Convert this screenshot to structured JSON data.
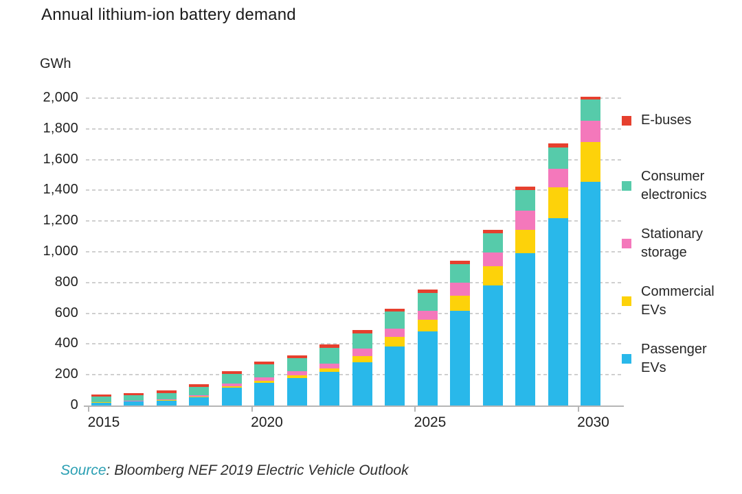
{
  "title": "Annual lithium-ion battery demand",
  "unit_label": "GWh",
  "source": {
    "prefix": "Source",
    "rest": ": Bloomberg NEF 2019 Electric Vehicle Outlook"
  },
  "colors": {
    "passenger_evs": "#29b8ea",
    "commercial_evs": "#fdd20a",
    "stationary_storage": "#f478bb",
    "consumer_electronics": "#56cbaa",
    "e_buses": "#e6402e",
    "axis": "#b5b5b5",
    "gridline": "#cfcfcf",
    "source_accent": "#2a9fb3",
    "text": "#1f1f1f"
  },
  "chart_data": {
    "type": "bar",
    "stacked": true,
    "title": "Annual lithium-ion battery demand",
    "ylabel": "GWh",
    "xlabel": "",
    "ylim": [
      0,
      2000
    ],
    "ytick_step": 200,
    "ytick_labels": [
      "0",
      "200",
      "400",
      "600",
      "800",
      "1,000",
      "1,200",
      "1,400",
      "1,600",
      "1,800",
      "2,000"
    ],
    "grid": "dashed-horizontal",
    "legend_position": "right",
    "categories": [
      2015,
      2016,
      2017,
      2018,
      2019,
      2020,
      2021,
      2022,
      2023,
      2024,
      2025,
      2026,
      2027,
      2028,
      2029,
      2030
    ],
    "xtick_labels": [
      "2015",
      "2020",
      "2025",
      "2030"
    ],
    "series": [
      {
        "name": "Passenger EVs",
        "color": "#29b8ea",
        "values": [
          20,
          25,
          33,
          55,
          118,
          148,
          180,
          220,
          280,
          385,
          480,
          615,
          780,
          990,
          1220,
          1455
        ]
      },
      {
        "name": "Commercial EVs",
        "color": "#fdd20a",
        "values": [
          1,
          2,
          3,
          5,
          8,
          15,
          18,
          22,
          40,
          60,
          78,
          100,
          125,
          155,
          200,
          260
        ]
      },
      {
        "name": "Stationary storage",
        "color": "#f478bb",
        "values": [
          2,
          3,
          4,
          8,
          18,
          20,
          24,
          30,
          50,
          55,
          60,
          85,
          90,
          125,
          120,
          140
        ]
      },
      {
        "name": "Consumer electronics",
        "color": "#56cbaa",
        "values": [
          35,
          36,
          40,
          52,
          62,
          85,
          85,
          105,
          100,
          110,
          115,
          118,
          125,
          130,
          140,
          135
        ]
      },
      {
        "name": "E-buses",
        "color": "#e6402e",
        "values": [
          13,
          14,
          18,
          18,
          18,
          17,
          20,
          22,
          20,
          20,
          22,
          22,
          25,
          25,
          25,
          20
        ]
      }
    ],
    "totals": [
      71,
      80,
      98,
      138,
      224,
      285,
      327,
      399,
      490,
      630,
      755,
      940,
      1145,
      1425,
      1705,
      2010
    ]
  },
  "legend": {
    "items": [
      {
        "label": "E-buses",
        "color": "#e6402e"
      },
      {
        "label": "Consumer electronics",
        "color": "#56cbaa"
      },
      {
        "label": "Stationary storage",
        "color": "#f478bb"
      },
      {
        "label": "Commercial EVs",
        "color": "#fdd20a"
      },
      {
        "label": "Passenger EVs",
        "color": "#29b8ea"
      }
    ]
  }
}
